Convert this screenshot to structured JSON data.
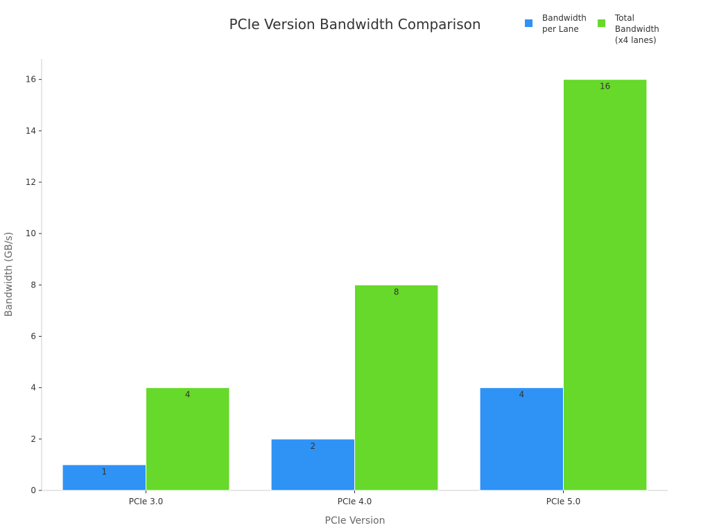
{
  "chart_data": {
    "type": "bar",
    "title": "PCIe Version Bandwidth Comparison",
    "xlabel": "PCIe Version",
    "ylabel": "Bandwidth (GB/s)",
    "categories": [
      "PCIe 3.0",
      "PCIe 4.0",
      "PCIe 5.0"
    ],
    "series": [
      {
        "name": "Bandwidth\nper Lane",
        "color": "#2f92f5",
        "values": [
          1,
          2,
          4
        ]
      },
      {
        "name": "Total\nBandwidth\n(x4 lanes)",
        "color": "#66d92a",
        "values": [
          4,
          8,
          16
        ]
      }
    ],
    "ylim": [
      0,
      16.8
    ],
    "yticks": [
      0,
      2,
      4,
      6,
      8,
      10,
      12,
      14,
      16
    ],
    "grid": false,
    "legend_position": "top-right",
    "data_labels": true
  }
}
